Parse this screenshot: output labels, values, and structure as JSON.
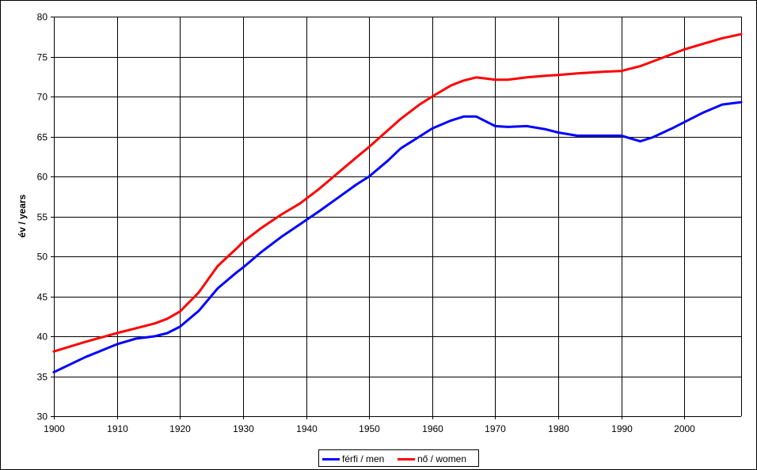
{
  "chart_data": {
    "type": "line",
    "xlabel": "",
    "ylabel": "év / years",
    "xlim": [
      1900,
      2009
    ],
    "ylim": [
      30,
      80
    ],
    "x_ticks": [
      "1900",
      "1910",
      "1920",
      "1930",
      "1940",
      "1950",
      "1960",
      "1970",
      "1980",
      "1990",
      "2000"
    ],
    "y_ticks": [
      "30",
      "35",
      "40",
      "45",
      "50",
      "55",
      "60",
      "65",
      "70",
      "75",
      "80"
    ],
    "grid": true,
    "legend_position": "bottom",
    "series": [
      {
        "name": "férfi / men",
        "color": "#0000ff",
        "points": [
          [
            1900,
            35.5
          ],
          [
            1905,
            37.4
          ],
          [
            1910,
            39.0
          ],
          [
            1913,
            39.7
          ],
          [
            1916,
            40.0
          ],
          [
            1918,
            40.4
          ],
          [
            1920,
            41.2
          ],
          [
            1923,
            43.2
          ],
          [
            1926,
            46.0
          ],
          [
            1929,
            48.0
          ],
          [
            1930,
            48.6
          ],
          [
            1933,
            50.6
          ],
          [
            1936,
            52.4
          ],
          [
            1939,
            54.0
          ],
          [
            1942,
            55.6
          ],
          [
            1945,
            57.3
          ],
          [
            1948,
            59.0
          ],
          [
            1950,
            60.0
          ],
          [
            1953,
            62.0
          ],
          [
            1955,
            63.5
          ],
          [
            1958,
            65.0
          ],
          [
            1960,
            66.0
          ],
          [
            1963,
            67.0
          ],
          [
            1965,
            67.5
          ],
          [
            1967,
            67.5
          ],
          [
            1970,
            66.3
          ],
          [
            1972,
            66.2
          ],
          [
            1975,
            66.3
          ],
          [
            1978,
            65.9
          ],
          [
            1980,
            65.5
          ],
          [
            1983,
            65.1
          ],
          [
            1987,
            65.1
          ],
          [
            1990,
            65.1
          ],
          [
            1993,
            64.4
          ],
          [
            1995,
            64.9
          ],
          [
            1998,
            66.0
          ],
          [
            2000,
            66.8
          ],
          [
            2003,
            68.0
          ],
          [
            2006,
            69.0
          ],
          [
            2009,
            69.3
          ]
        ]
      },
      {
        "name": "nő / women",
        "color": "#ff0000",
        "points": [
          [
            1900,
            38.1
          ],
          [
            1905,
            39.3
          ],
          [
            1910,
            40.4
          ],
          [
            1913,
            41.0
          ],
          [
            1916,
            41.6
          ],
          [
            1918,
            42.2
          ],
          [
            1920,
            43.1
          ],
          [
            1923,
            45.5
          ],
          [
            1926,
            48.8
          ],
          [
            1929,
            51.0
          ],
          [
            1930,
            51.8
          ],
          [
            1933,
            53.6
          ],
          [
            1936,
            55.2
          ],
          [
            1939,
            56.6
          ],
          [
            1942,
            58.4
          ],
          [
            1945,
            60.4
          ],
          [
            1948,
            62.4
          ],
          [
            1950,
            63.7
          ],
          [
            1953,
            65.8
          ],
          [
            1955,
            67.2
          ],
          [
            1958,
            69.0
          ],
          [
            1960,
            70.0
          ],
          [
            1963,
            71.4
          ],
          [
            1965,
            72.0
          ],
          [
            1967,
            72.4
          ],
          [
            1970,
            72.1
          ],
          [
            1972,
            72.1
          ],
          [
            1975,
            72.4
          ],
          [
            1978,
            72.6
          ],
          [
            1980,
            72.7
          ],
          [
            1983,
            72.9
          ],
          [
            1987,
            73.1
          ],
          [
            1990,
            73.2
          ],
          [
            1993,
            73.8
          ],
          [
            1995,
            74.4
          ],
          [
            1998,
            75.3
          ],
          [
            2000,
            75.9
          ],
          [
            2003,
            76.6
          ],
          [
            2006,
            77.3
          ],
          [
            2009,
            77.8
          ]
        ]
      }
    ]
  }
}
